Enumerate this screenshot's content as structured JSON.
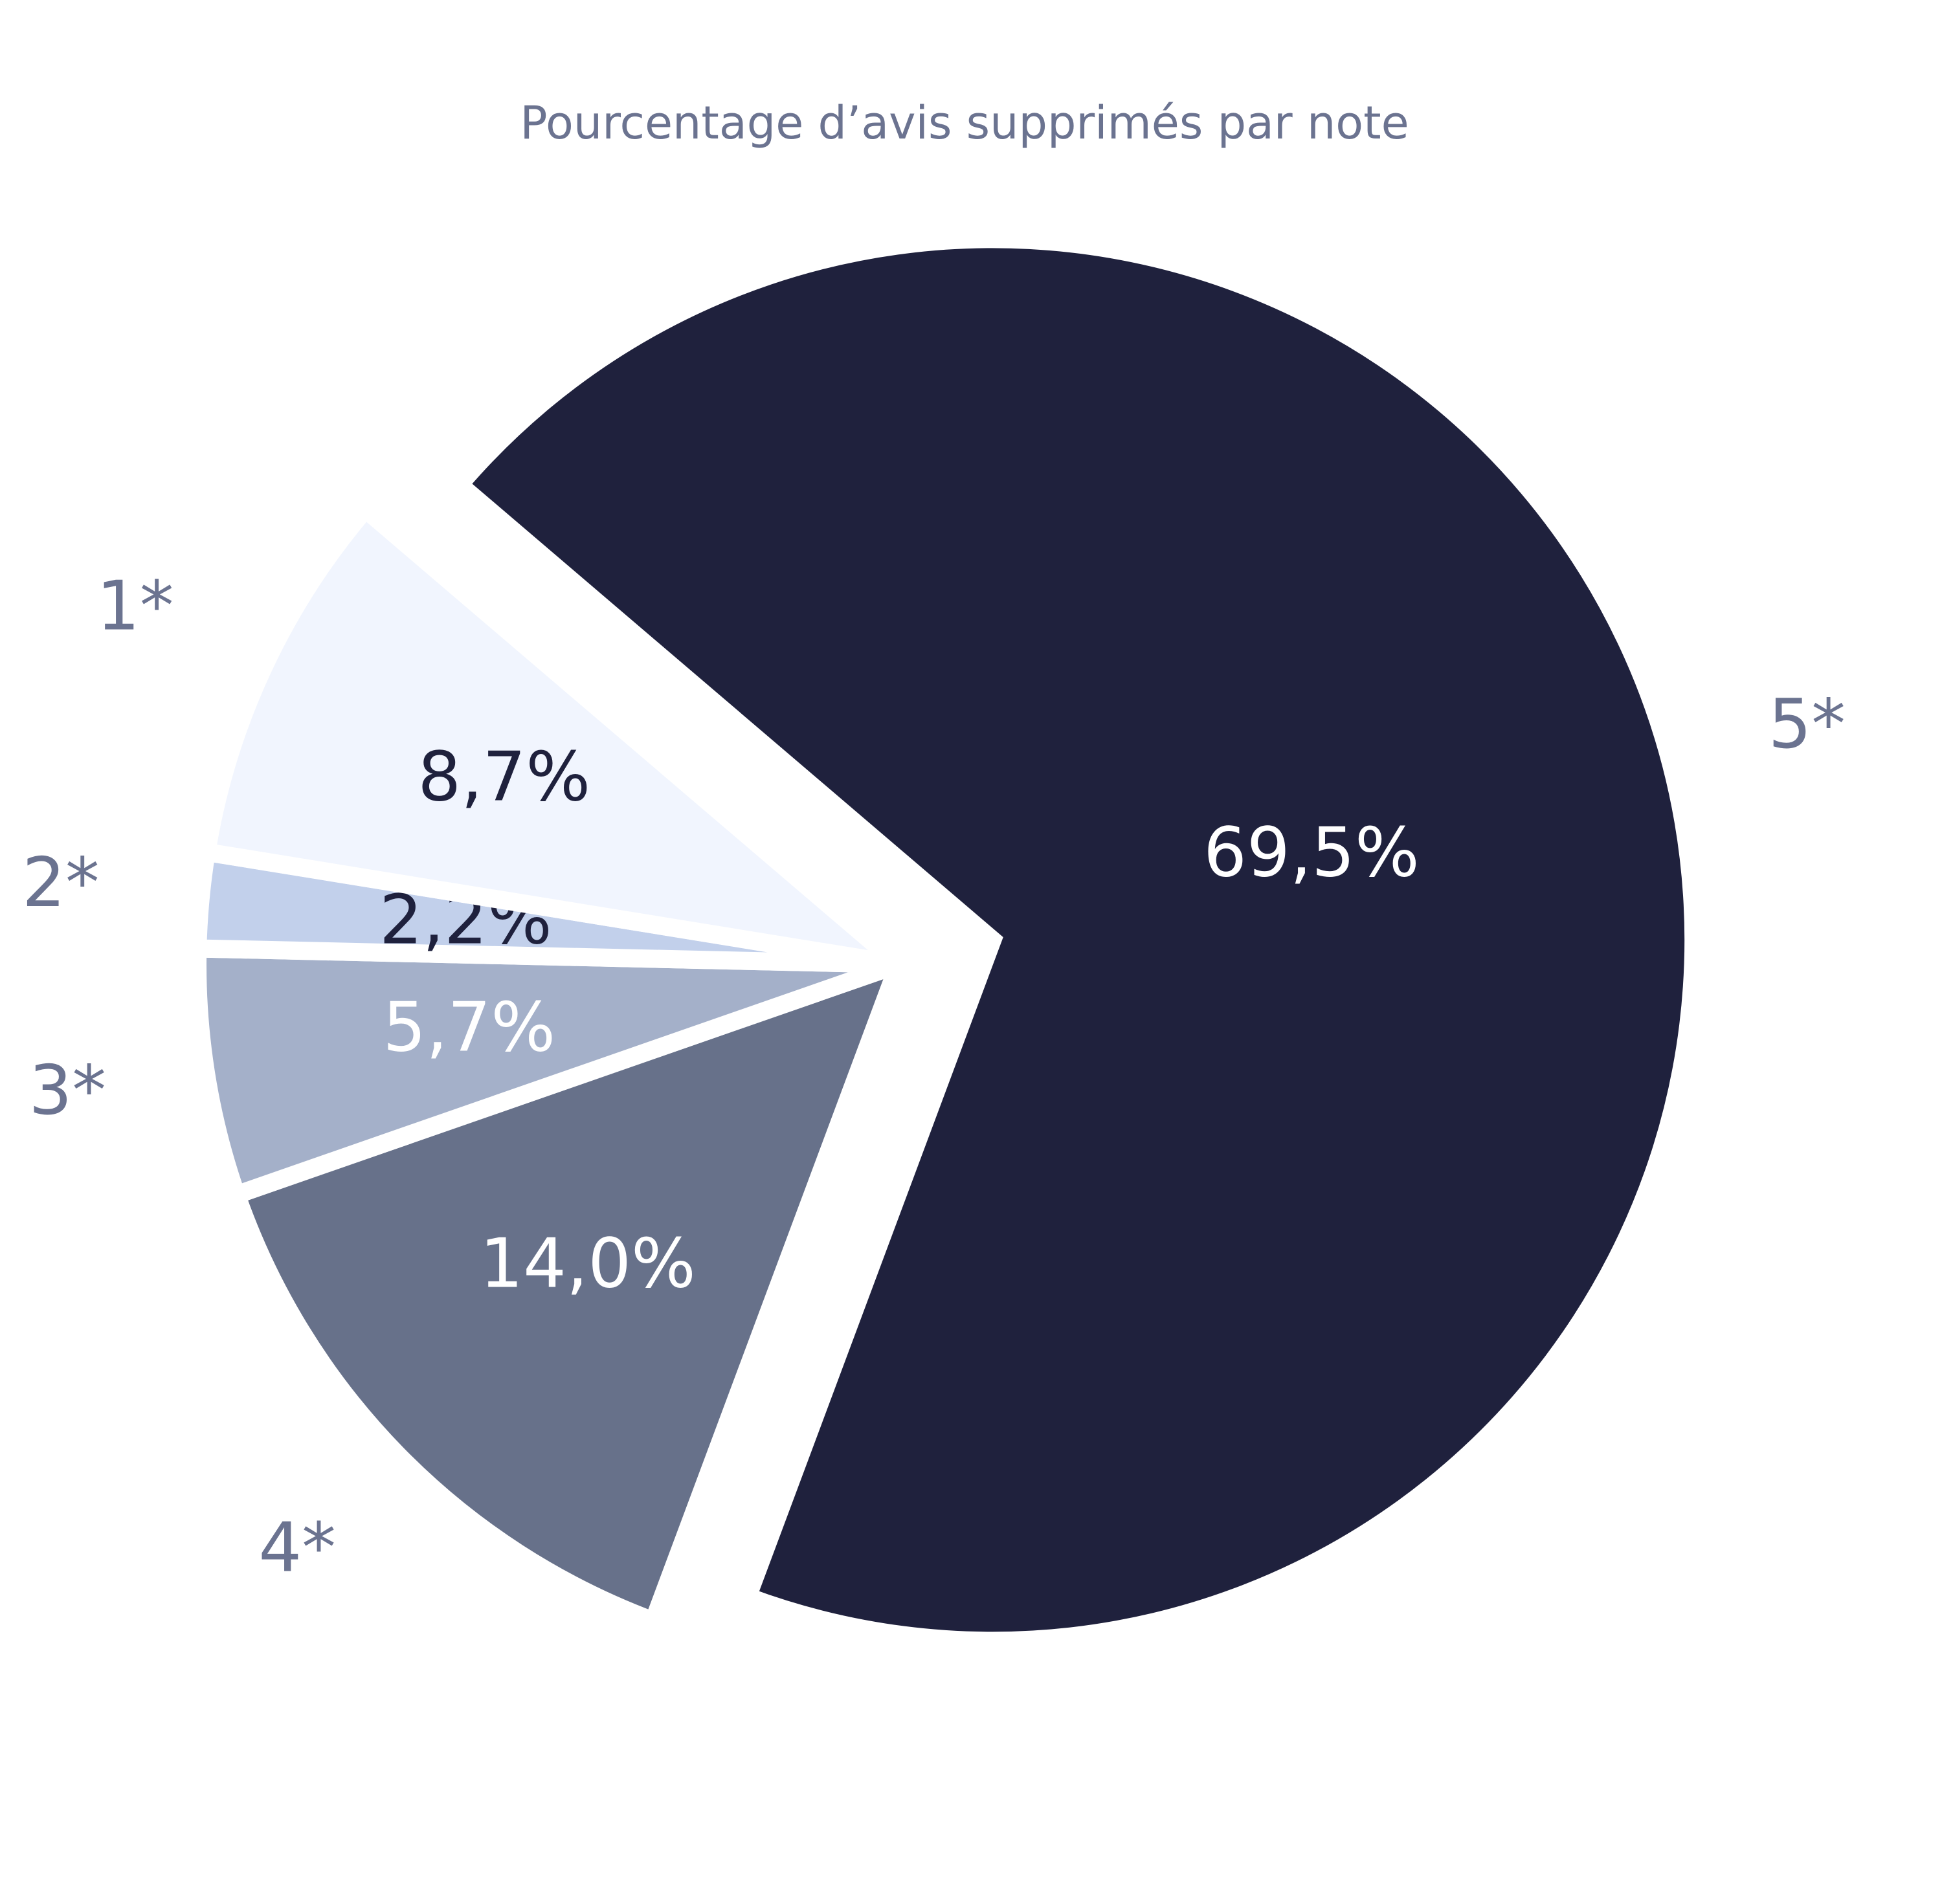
{
  "chart_data": {
    "type": "pie",
    "title": "Pourcentage d’avis supprimés par note",
    "categories": [
      "1*",
      "2*",
      "3*",
      "4*",
      "5*"
    ],
    "values": [
      8.7,
      2.2,
      5.7,
      14.0,
      69.5
    ],
    "value_labels": [
      "8,7%",
      "2,2%",
      "5,7%",
      "14,0%",
      "69,5%"
    ],
    "colors": [
      "#f1f5fe",
      "#c2d0eb",
      "#a4b0c9",
      "#67718a",
      "#1f213d"
    ]
  }
}
